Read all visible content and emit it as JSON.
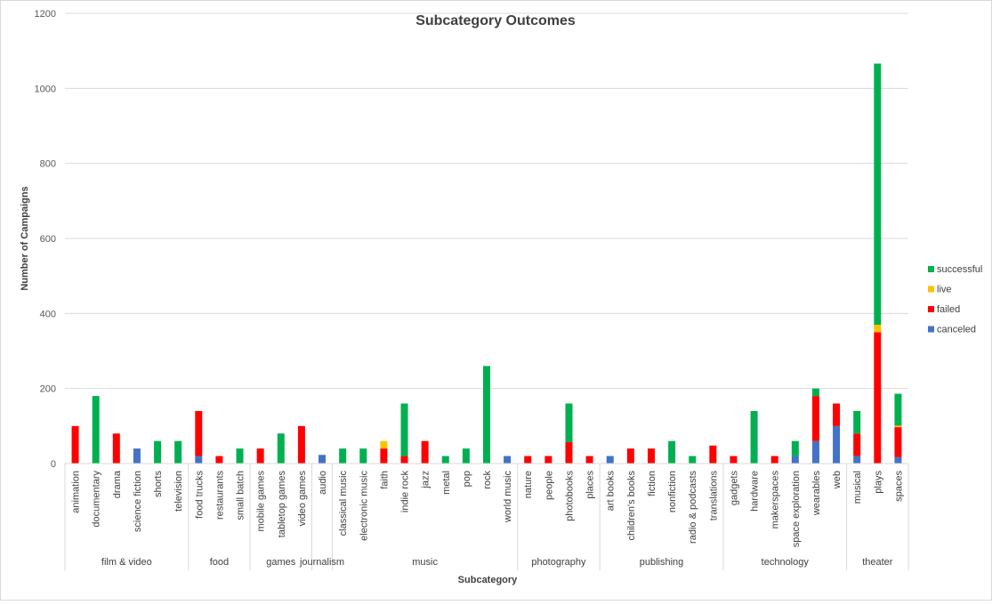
{
  "chart_data": {
    "type": "bar",
    "stacked": true,
    "title": "Subcategory Outcomes",
    "xlabel": "Subcategory",
    "ylabel": "Number of Campaigns",
    "ylim": [
      0,
      1200
    ],
    "yticks": [
      0,
      200,
      400,
      600,
      800,
      1000,
      1200
    ],
    "grid": true,
    "legend_position": "right",
    "groups": [
      {
        "name": "film & video",
        "count": 6
      },
      {
        "name": "food",
        "count": 3
      },
      {
        "name": "games",
        "count": 3
      },
      {
        "name": "journalism",
        "count": 1
      },
      {
        "name": "music",
        "count": 9
      },
      {
        "name": "photography",
        "count": 4
      },
      {
        "name": "publishing",
        "count": 6
      },
      {
        "name": "technology",
        "count": 6
      },
      {
        "name": "theater",
        "count": 3
      }
    ],
    "categories": [
      "animation",
      "documentary",
      "drama",
      "science fiction",
      "shorts",
      "television",
      "food trucks",
      "restaurants",
      "small batch",
      "mobile games",
      "tabletop games",
      "video games",
      "audio",
      "classical music",
      "electronic music",
      "faith",
      "indie rock",
      "jazz",
      "metal",
      "pop",
      "rock",
      "world music",
      "nature",
      "people",
      "photobooks",
      "places",
      "art books",
      "children's books",
      "fiction",
      "nonfiction",
      "radio & podcasts",
      "translations",
      "gadgets",
      "hardware",
      "makerspaces",
      "space exploration",
      "wearables",
      "web",
      "musical",
      "plays",
      "spaces"
    ],
    "series": [
      {
        "name": "canceled",
        "color": "#4472C4",
        "values": [
          0,
          0,
          0,
          40,
          0,
          0,
          20,
          0,
          0,
          0,
          0,
          0,
          23,
          0,
          0,
          0,
          0,
          0,
          0,
          0,
          0,
          20,
          0,
          0,
          0,
          0,
          20,
          0,
          0,
          0,
          0,
          0,
          0,
          0,
          0,
          20,
          60,
          100,
          20,
          0,
          17
        ]
      },
      {
        "name": "failed",
        "color": "#FF0000",
        "values": [
          100,
          0,
          80,
          0,
          0,
          0,
          120,
          20,
          0,
          40,
          0,
          100,
          0,
          0,
          0,
          40,
          20,
          60,
          0,
          0,
          0,
          0,
          20,
          20,
          57,
          20,
          0,
          40,
          40,
          0,
          0,
          48,
          20,
          0,
          20,
          0,
          120,
          60,
          60,
          350,
          80
        ]
      },
      {
        "name": "live",
        "color": "#FFC000",
        "values": [
          0,
          0,
          0,
          0,
          0,
          0,
          0,
          0,
          0,
          0,
          0,
          0,
          0,
          0,
          0,
          20,
          0,
          0,
          0,
          0,
          0,
          0,
          0,
          0,
          0,
          0,
          0,
          0,
          0,
          0,
          0,
          0,
          0,
          0,
          0,
          0,
          0,
          0,
          0,
          20,
          4
        ]
      },
      {
        "name": "successful",
        "color": "#00B050",
        "values": [
          0,
          180,
          0,
          0,
          60,
          60,
          0,
          0,
          40,
          0,
          80,
          0,
          0,
          40,
          40,
          0,
          140,
          0,
          20,
          40,
          260,
          0,
          0,
          0,
          103,
          0,
          0,
          0,
          0,
          60,
          20,
          0,
          0,
          140,
          0,
          40,
          20,
          0,
          60,
          696,
          85
        ]
      }
    ]
  }
}
